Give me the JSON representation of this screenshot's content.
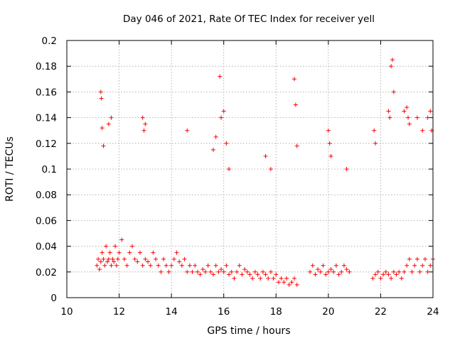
{
  "chart_data": {
    "type": "scatter",
    "title": "Day 046 of 2021, Rate Of TEC Index for receiver yell",
    "xlabel": "GPS time / hours",
    "ylabel": "ROTI / TECUs",
    "xlim": [
      10,
      24
    ],
    "ylim": [
      0,
      0.2
    ],
    "xticks": [
      10,
      12,
      14,
      16,
      18,
      20,
      22,
      24
    ],
    "yticks": [
      0,
      0.02,
      0.04,
      0.06,
      0.08,
      0.1,
      0.12,
      0.14,
      0.16,
      0.18,
      0.2
    ],
    "x_tick_labels": [
      "10",
      "12",
      "14",
      "16",
      "18",
      "20",
      "22",
      "24"
    ],
    "y_tick_labels": [
      "0",
      "0.02",
      "0.04",
      "0.06",
      "0.08",
      "0.1",
      "0.12",
      "0.14",
      "0.16",
      "0.18",
      "0.2"
    ],
    "grid": true,
    "marker": "plus",
    "series": [
      {
        "name": "ROTI",
        "color": "#ff0000",
        "x": [
          11.15,
          11.2,
          11.25,
          11.3,
          11.35,
          11.4,
          11.45,
          11.5,
          11.55,
          11.6,
          11.65,
          11.7,
          11.75,
          11.8,
          11.85,
          11.9,
          11.95,
          12.0,
          12.1,
          12.2,
          12.3,
          12.4,
          12.5,
          12.6,
          12.7,
          12.8,
          12.9,
          13.0,
          13.1,
          13.2,
          13.3,
          13.4,
          13.5,
          13.6,
          13.7,
          13.8,
          13.9,
          14.0,
          14.1,
          14.2,
          14.3,
          14.4,
          14.5,
          14.6,
          14.7,
          14.8,
          14.9,
          15.0,
          15.1,
          15.2,
          15.3,
          15.4,
          15.5,
          15.6,
          15.7,
          15.8,
          15.9,
          16.0,
          16.1,
          16.2,
          16.3,
          16.4,
          16.5,
          16.6,
          16.7,
          16.8,
          16.9,
          17.0,
          17.1,
          17.2,
          17.3,
          17.4,
          17.5,
          17.6,
          17.7,
          17.8,
          17.9,
          18.0,
          18.1,
          18.2,
          18.3,
          18.4,
          18.5,
          18.6,
          18.7,
          18.8,
          19.3,
          19.4,
          19.5,
          19.6,
          19.7,
          19.8,
          19.9,
          20.0,
          20.1,
          20.2,
          20.3,
          20.4,
          20.5,
          20.6,
          20.7,
          20.8,
          21.7,
          21.8,
          21.9,
          22.0,
          22.1,
          22.2,
          22.3,
          22.4,
          22.5,
          22.6,
          22.7,
          22.8,
          22.9,
          23.0,
          23.1,
          23.2,
          23.3,
          23.4,
          23.5,
          23.6,
          23.7,
          23.8,
          23.9,
          24.0,
          11.3,
          11.32,
          11.35,
          11.4,
          11.6,
          11.7,
          12.9,
          12.95,
          13.0,
          14.6,
          15.6,
          15.7,
          15.85,
          15.9,
          16.0,
          16.1,
          16.2,
          17.6,
          17.8,
          18.7,
          18.75,
          18.8,
          20.0,
          20.05,
          20.1,
          20.7,
          21.75,
          21.8,
          22.3,
          22.35,
          22.4,
          22.45,
          22.5,
          22.9,
          23.0,
          23.05,
          23.1,
          23.4,
          23.6,
          23.8,
          23.9,
          23.95
        ],
        "y": [
          0.025,
          0.03,
          0.022,
          0.028,
          0.035,
          0.03,
          0.025,
          0.04,
          0.028,
          0.03,
          0.035,
          0.025,
          0.03,
          0.028,
          0.04,
          0.025,
          0.03,
          0.035,
          0.045,
          0.03,
          0.025,
          0.035,
          0.04,
          0.03,
          0.028,
          0.035,
          0.025,
          0.03,
          0.028,
          0.025,
          0.035,
          0.03,
          0.025,
          0.02,
          0.03,
          0.025,
          0.02,
          0.025,
          0.03,
          0.035,
          0.028,
          0.025,
          0.03,
          0.02,
          0.025,
          0.02,
          0.025,
          0.02,
          0.018,
          0.022,
          0.02,
          0.025,
          0.02,
          0.018,
          0.025,
          0.02,
          0.022,
          0.02,
          0.025,
          0.018,
          0.02,
          0.015,
          0.02,
          0.025,
          0.018,
          0.022,
          0.02,
          0.018,
          0.015,
          0.02,
          0.018,
          0.015,
          0.02,
          0.018,
          0.015,
          0.02,
          0.015,
          0.018,
          0.012,
          0.015,
          0.012,
          0.015,
          0.01,
          0.012,
          0.015,
          0.01,
          0.02,
          0.025,
          0.018,
          0.022,
          0.02,
          0.025,
          0.018,
          0.02,
          0.022,
          0.02,
          0.025,
          0.018,
          0.02,
          0.025,
          0.022,
          0.02,
          0.015,
          0.018,
          0.02,
          0.015,
          0.018,
          0.02,
          0.018,
          0.015,
          0.02,
          0.018,
          0.02,
          0.015,
          0.02,
          0.025,
          0.03,
          0.02,
          0.025,
          0.03,
          0.02,
          0.025,
          0.03,
          0.02,
          0.025,
          0.03,
          0.16,
          0.155,
          0.132,
          0.118,
          0.135,
          0.14,
          0.14,
          0.13,
          0.135,
          0.13,
          0.115,
          0.125,
          0.172,
          0.14,
          0.145,
          0.12,
          0.1,
          0.11,
          0.1,
          0.17,
          0.15,
          0.118,
          0.13,
          0.12,
          0.11,
          0.1,
          0.13,
          0.12,
          0.145,
          0.14,
          0.18,
          0.185,
          0.16,
          0.145,
          0.148,
          0.14,
          0.135,
          0.14,
          0.13,
          0.14,
          0.145,
          0.13
        ]
      }
    ]
  }
}
